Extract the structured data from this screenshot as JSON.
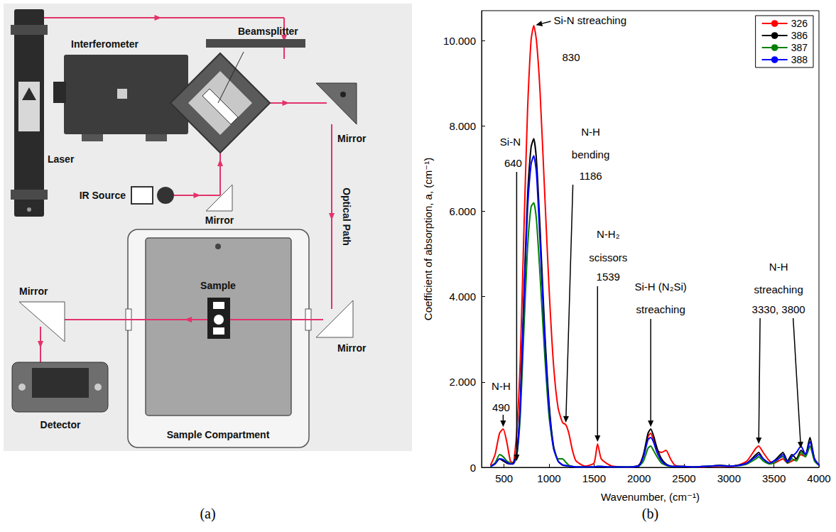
{
  "diagram": {
    "labels": {
      "laser": "Laser",
      "interferometer": "Interferometer",
      "beamsplitter": "Beamsplitter",
      "ir_source": "IR Source",
      "mirror_top": "Mirror",
      "mirror_source": "Mirror",
      "mirror_bottom": "Mirror",
      "mirror_left": "Mirror",
      "optical_path": "Optical Path",
      "sample": "Sample",
      "sample_compartment": "Sample Compartment",
      "detector": "Detector"
    }
  },
  "captions": [
    "(a)",
    "(b)"
  ],
  "chart_data": {
    "type": "line",
    "xlabel": "Wavenumber, (cm⁻¹)",
    "ylabel": "Coefficient of absorption, a, (cm⁻¹)",
    "x": [
      350,
      400,
      450,
      490,
      530,
      570,
      600,
      640,
      680,
      720,
      760,
      800,
      830,
      860,
      900,
      950,
      1000,
      1050,
      1100,
      1150,
      1186,
      1220,
      1260,
      1300,
      1400,
      1500,
      1539,
      1580,
      1650,
      1700,
      1800,
      1900,
      2000,
      2050,
      2100,
      2130,
      2160,
      2200,
      2250,
      2300,
      2350,
      2400,
      2500,
      2600,
      2700,
      2800,
      2900,
      3000,
      3100,
      3200,
      3300,
      3330,
      3380,
      3450,
      3500,
      3550,
      3600,
      3650,
      3700,
      3750,
      3800,
      3850,
      3900,
      3950,
      4000
    ],
    "series": [
      {
        "name": "326",
        "color": "#ff0000",
        "values": [
          0.05,
          0.3,
          0.8,
          0.9,
          0.6,
          0.15,
          0.1,
          0.8,
          2.5,
          5.5,
          8.3,
          10.0,
          10.35,
          10.0,
          8.8,
          6.5,
          4.2,
          2.4,
          1.4,
          1.05,
          1.0,
          0.8,
          0.4,
          0.15,
          0.03,
          0.1,
          0.55,
          0.2,
          0.08,
          0.03,
          0.01,
          0,
          0.05,
          0.3,
          0.72,
          0.8,
          0.65,
          0.4,
          0.35,
          0.4,
          0.2,
          0.05,
          0.02,
          0.01,
          0.01,
          0.02,
          0.03,
          0.02,
          0.05,
          0.15,
          0.45,
          0.5,
          0.35,
          0.15,
          0.1,
          0.15,
          0.2,
          0.1,
          0.15,
          0.2,
          0.3,
          0.25,
          0.5,
          0.2,
          0.05
        ]
      },
      {
        "name": "386",
        "color": "#000000",
        "values": [
          0.02,
          0.1,
          0.2,
          0.15,
          0.1,
          0.08,
          0.1,
          0.3,
          1.5,
          4.0,
          6.3,
          7.5,
          7.7,
          7.2,
          5.6,
          3.3,
          1.5,
          0.5,
          0.15,
          0.05,
          0.04,
          0.03,
          0.02,
          0.01,
          0.01,
          0.01,
          0.02,
          0.02,
          0.01,
          0.01,
          0.01,
          0.01,
          0.05,
          0.3,
          0.8,
          0.9,
          0.75,
          0.45,
          0.2,
          0.08,
          0.03,
          0.02,
          0.02,
          0.01,
          0.02,
          0.03,
          0.05,
          0.03,
          0.05,
          0.1,
          0.3,
          0.35,
          0.2,
          0.1,
          0.15,
          0.25,
          0.35,
          0.15,
          0.3,
          0.2,
          0.4,
          0.3,
          0.7,
          0.2,
          0.05
        ]
      },
      {
        "name": "387",
        "color": "#008000",
        "values": [
          0.02,
          0.1,
          0.3,
          0.25,
          0.15,
          0.1,
          0.08,
          0.25,
          1.2,
          3.2,
          5.1,
          6.1,
          6.2,
          5.8,
          4.5,
          2.7,
          1.2,
          0.45,
          0.2,
          0.2,
          0.12,
          0.05,
          0.02,
          0.01,
          0.01,
          0.01,
          0.02,
          0.02,
          0.01,
          0.01,
          0.01,
          0.01,
          0.03,
          0.15,
          0.45,
          0.5,
          0.4,
          0.25,
          0.1,
          0.05,
          0.02,
          0.02,
          0.02,
          0.01,
          0.02,
          0.03,
          0.04,
          0.03,
          0.04,
          0.08,
          0.2,
          0.25,
          0.15,
          0.08,
          0.1,
          0.2,
          0.25,
          0.1,
          0.2,
          0.15,
          0.35,
          0.25,
          0.5,
          0.15,
          0.05
        ]
      },
      {
        "name": "388",
        "color": "#0000ff",
        "values": [
          0.02,
          0.08,
          0.2,
          0.18,
          0.12,
          0.08,
          0.08,
          0.28,
          1.4,
          3.8,
          6.0,
          7.1,
          7.3,
          6.9,
          5.3,
          3.1,
          1.4,
          0.45,
          0.15,
          0.06,
          0.04,
          0.03,
          0.02,
          0.01,
          0.01,
          0.01,
          0.02,
          0.02,
          0.01,
          0.01,
          0.01,
          0.01,
          0.04,
          0.25,
          0.65,
          0.7,
          0.6,
          0.35,
          0.15,
          0.06,
          0.03,
          0.02,
          0.02,
          0.01,
          0.02,
          0.03,
          0.04,
          0.03,
          0.04,
          0.1,
          0.25,
          0.3,
          0.2,
          0.1,
          0.15,
          0.2,
          0.3,
          0.12,
          0.25,
          0.35,
          0.5,
          0.3,
          0.6,
          0.2,
          0.05
        ]
      }
    ],
    "xlim": [
      250,
      4000
    ],
    "xticks": [
      500,
      1000,
      1500,
      2000,
      2500,
      3000,
      3500,
      4000
    ],
    "ylim": [
      0,
      10.7
    ],
    "yticks": [
      0,
      {
        "value": 2,
        "label": "2.000"
      },
      {
        "value": 4,
        "label": "4.000"
      },
      {
        "value": 6,
        "label": "6.000"
      },
      {
        "value": 8,
        "label": "8.000"
      },
      {
        "value": 10,
        "label": "10.000"
      }
    ],
    "grid": false,
    "legend": "upper right",
    "annotations": [
      {
        "lines": [
          "Si-N streaching",
          "830"
        ],
        "points": [
          {
            "x": 830,
            "y": 10.35
          }
        ]
      },
      {
        "lines": [
          "Si-N",
          "640"
        ],
        "points": [
          {
            "x": 640,
            "y": 0.1
          }
        ]
      },
      {
        "lines": [
          "N-H",
          "bending",
          "1186"
        ],
        "points": [
          {
            "x": 1186,
            "y": 1.0
          }
        ]
      },
      {
        "lines": [
          "N-H₂",
          "scissors",
          "1539"
        ],
        "points": [
          {
            "x": 1539,
            "y": 0.55
          }
        ]
      },
      {
        "lines": [
          "Si-H (N₂Si)",
          "streaching"
        ],
        "points": [
          {
            "x": 2130,
            "y": 0.9
          }
        ]
      },
      {
        "lines": [
          "N-H",
          "streaching",
          "3330, 3800"
        ],
        "points": [
          {
            "x": 3330,
            "y": 0.5
          },
          {
            "x": 3800,
            "y": 0.4
          }
        ]
      },
      {
        "lines": [
          "N-H",
          "490"
        ],
        "points": [
          {
            "x": 490,
            "y": 0.9
          }
        ]
      }
    ]
  }
}
